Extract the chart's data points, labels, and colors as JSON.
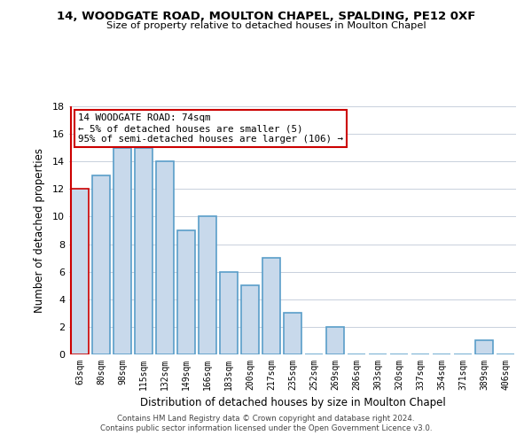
{
  "title": "14, WOODGATE ROAD, MOULTON CHAPEL, SPALDING, PE12 0XF",
  "subtitle": "Size of property relative to detached houses in Moulton Chapel",
  "xlabel": "Distribution of detached houses by size in Moulton Chapel",
  "ylabel": "Number of detached properties",
  "footnote1": "Contains HM Land Registry data © Crown copyright and database right 2024.",
  "footnote2": "Contains public sector information licensed under the Open Government Licence v3.0.",
  "categories": [
    "63sqm",
    "80sqm",
    "98sqm",
    "115sqm",
    "132sqm",
    "149sqm",
    "166sqm",
    "183sqm",
    "200sqm",
    "217sqm",
    "235sqm",
    "252sqm",
    "269sqm",
    "286sqm",
    "303sqm",
    "320sqm",
    "337sqm",
    "354sqm",
    "371sqm",
    "389sqm",
    "406sqm"
  ],
  "values": [
    12,
    13,
    15,
    15,
    14,
    9,
    10,
    6,
    5,
    7,
    3,
    0,
    2,
    0,
    0,
    0,
    0,
    0,
    0,
    1,
    0
  ],
  "bar_color": "#c8d9eb",
  "bar_edge_color": "#5a9ec9",
  "highlight_bar_index": 0,
  "highlight_bar_edge_color": "#cc0000",
  "highlight_line_color": "#cc0000",
  "ylim": [
    0,
    18
  ],
  "yticks": [
    0,
    2,
    4,
    6,
    8,
    10,
    12,
    14,
    16,
    18
  ],
  "annotation_text_line1": "14 WOODGATE ROAD: 74sqm",
  "annotation_text_line2": "← 5% of detached houses are smaller (5)",
  "annotation_text_line3": "95% of semi-detached houses are larger (106) →",
  "annotation_box_edge_color": "#cc0000",
  "background_color": "#ffffff",
  "grid_color": "#c8d0dc"
}
